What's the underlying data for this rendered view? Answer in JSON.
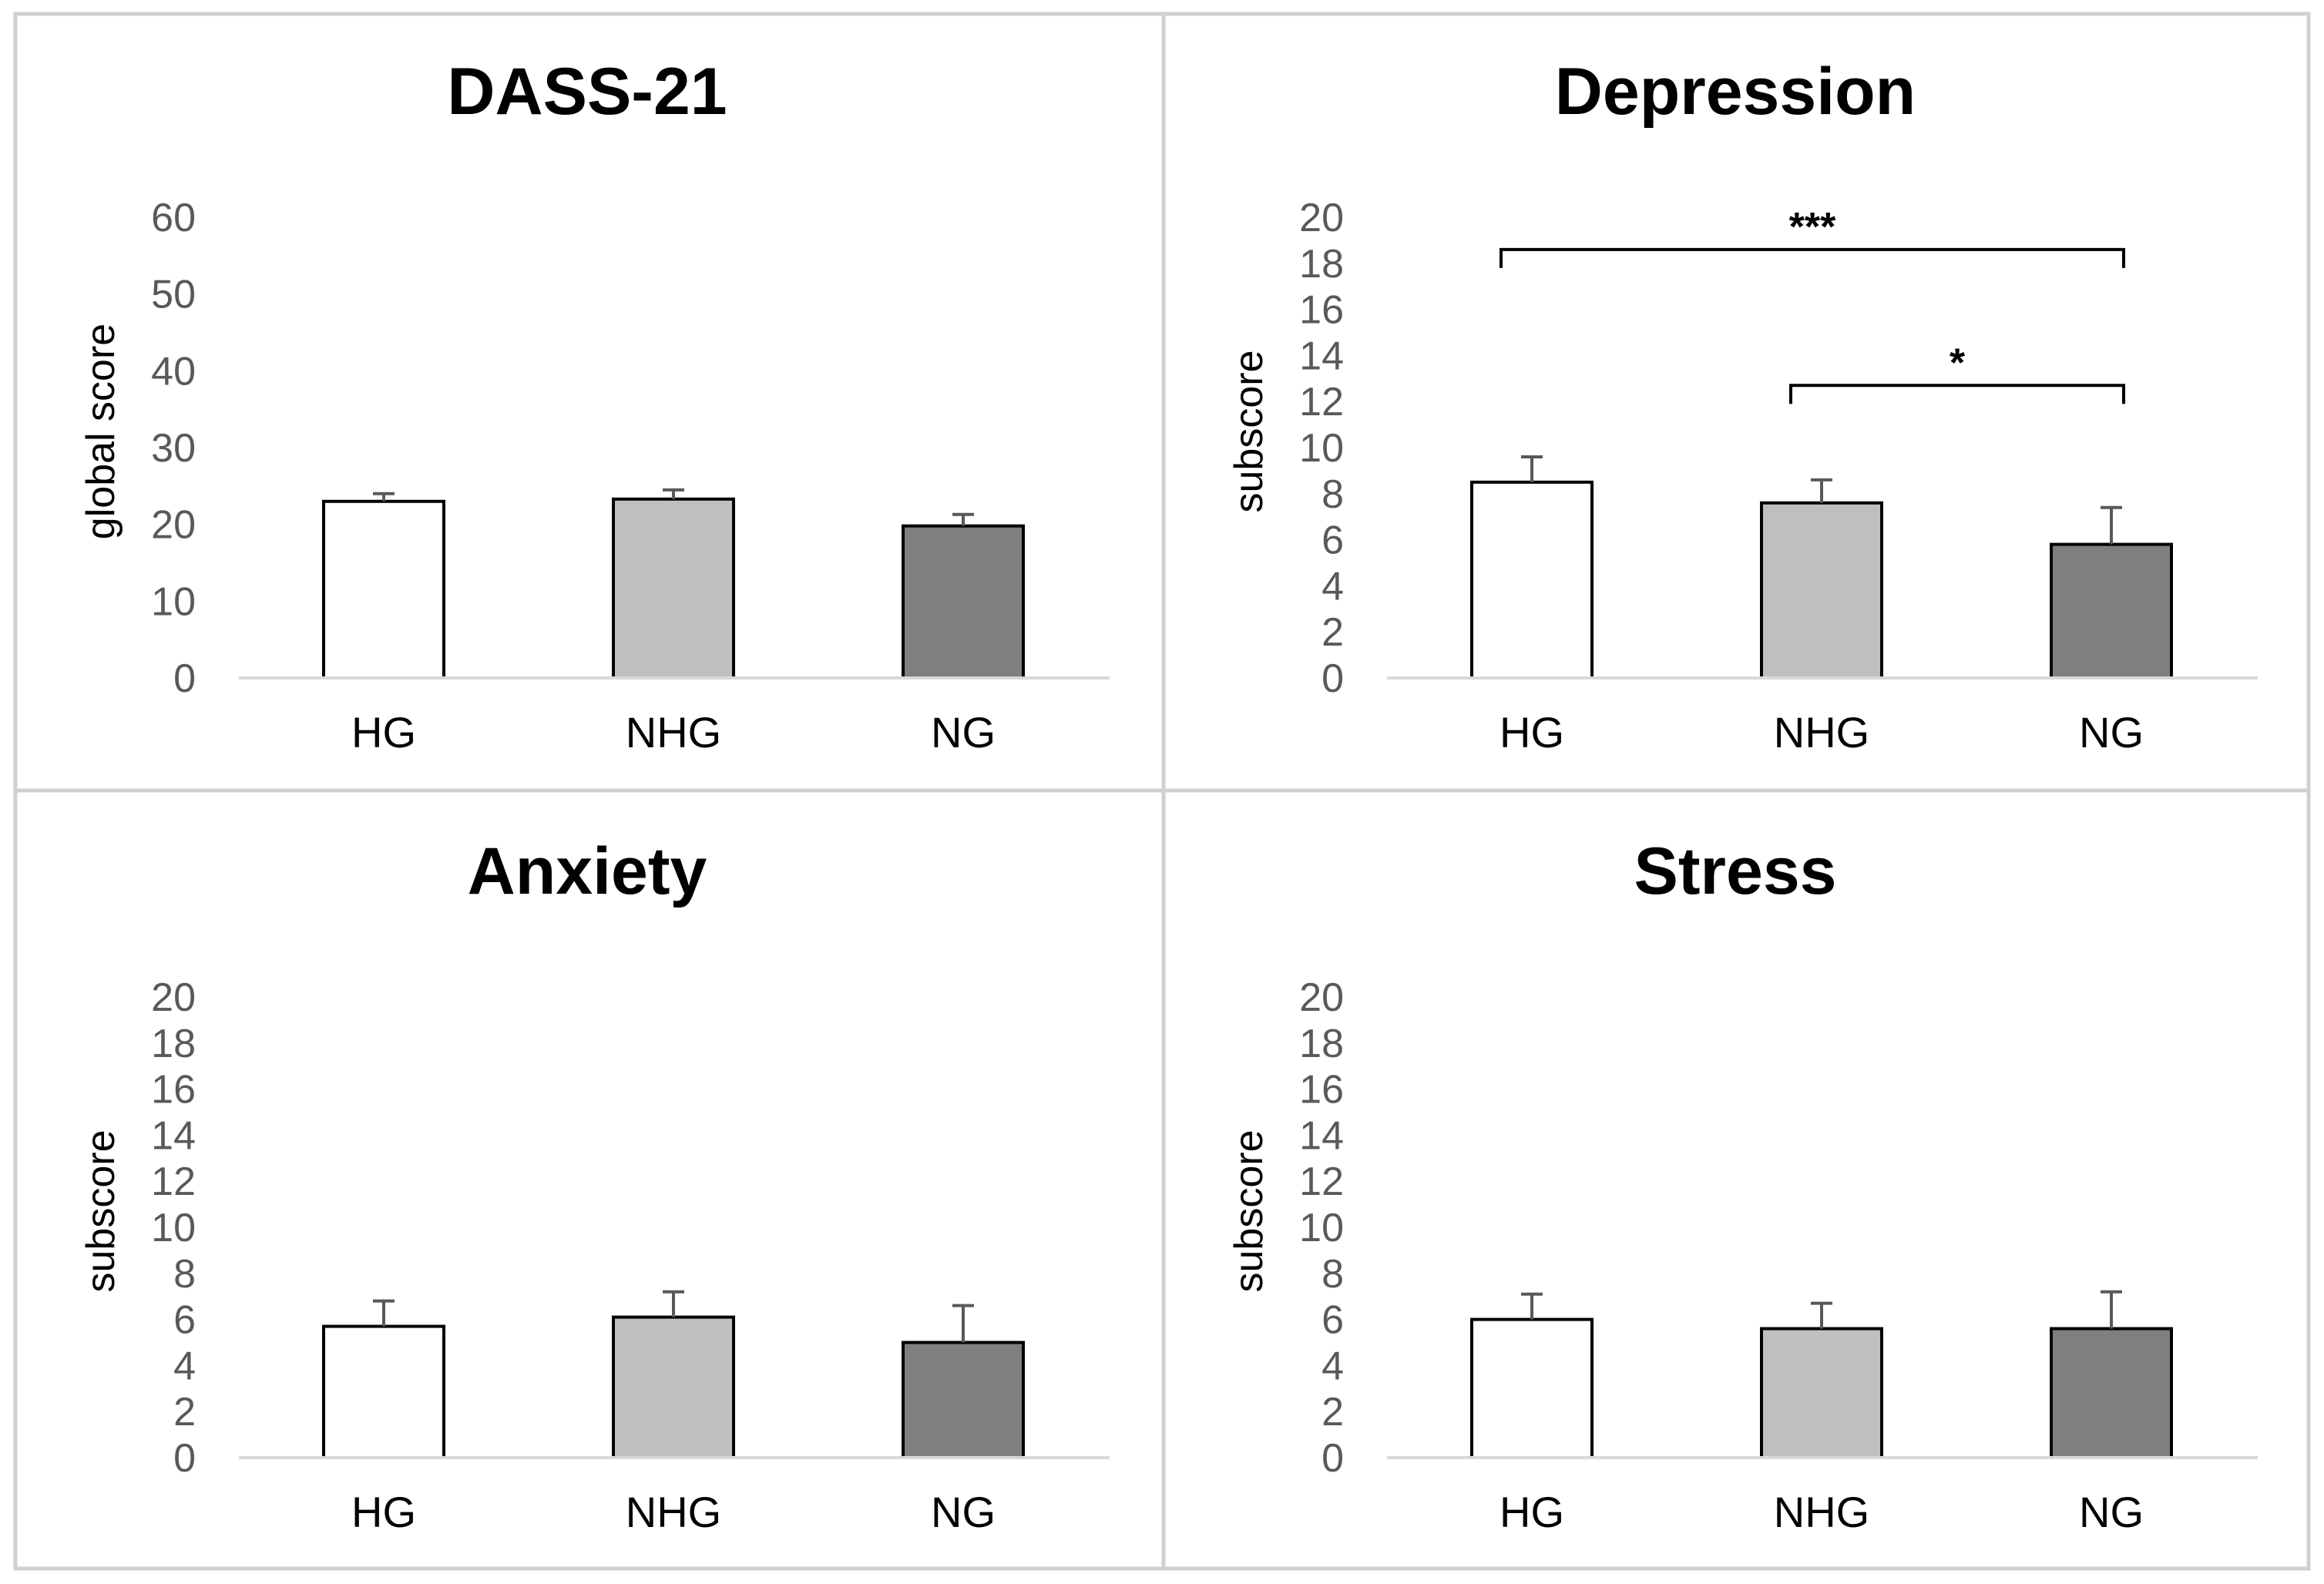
{
  "chart_data": [
    {
      "type": "bar",
      "title": "DASS-21",
      "ylabel": "global score",
      "xlabel": "",
      "categories": [
        "HG",
        "NHG",
        "NG"
      ],
      "values": [
        23,
        23.3,
        19.8
      ],
      "errors": [
        1.0,
        1.2,
        1.5
      ],
      "bar_colors": [
        "#ffffff",
        "#bfbfbf",
        "#7f7f7f"
      ],
      "ylim": [
        0,
        60
      ],
      "yticks": [
        "0",
        "10",
        "20",
        "30",
        "40",
        "50",
        "60"
      ],
      "ytick_values": [
        0,
        10,
        20,
        30,
        40,
        50,
        60
      ],
      "significance": []
    },
    {
      "type": "bar",
      "title": "Depression",
      "ylabel": "subscore",
      "xlabel": "",
      "categories": [
        "HG",
        "NHG",
        "NG"
      ],
      "values": [
        8.5,
        7.6,
        5.8
      ],
      "errors": [
        1.1,
        1.0,
        1.6
      ],
      "bar_colors": [
        "#ffffff",
        "#bfbfbf",
        "#7f7f7f"
      ],
      "ylim": [
        0,
        20
      ],
      "yticks": [
        "0",
        "2",
        "4",
        "6",
        "8",
        "10",
        "12",
        "14",
        "16",
        "18",
        "20"
      ],
      "ytick_values": [
        0,
        2,
        4,
        6,
        8,
        10,
        12,
        14,
        16,
        18,
        20
      ],
      "significance": [
        {
          "from": 0,
          "to": 2,
          "level": 18.6,
          "label": "***"
        },
        {
          "from": 1,
          "to": 2,
          "level": 12.7,
          "label": "*"
        }
      ]
    },
    {
      "type": "bar",
      "title": "Anxiety",
      "ylabel": "subscore",
      "xlabel": "",
      "categories": [
        "HG",
        "NHG",
        "NG"
      ],
      "values": [
        5.7,
        6.1,
        5.0
      ],
      "errors": [
        1.1,
        1.1,
        1.6
      ],
      "bar_colors": [
        "#ffffff",
        "#bfbfbf",
        "#7f7f7f"
      ],
      "ylim": [
        0,
        20
      ],
      "yticks": [
        "0",
        "2",
        "4",
        "6",
        "8",
        "10",
        "12",
        "14",
        "16",
        "18",
        "20"
      ],
      "ytick_values": [
        0,
        2,
        4,
        6,
        8,
        10,
        12,
        14,
        16,
        18,
        20
      ],
      "significance": []
    },
    {
      "type": "bar",
      "title": "Stress",
      "ylabel": "subscore",
      "xlabel": "",
      "categories": [
        "HG",
        "NHG",
        "NG"
      ],
      "values": [
        6.0,
        5.6,
        5.6
      ],
      "errors": [
        1.1,
        1.1,
        1.6
      ],
      "bar_colors": [
        "#ffffff",
        "#bfbfbf",
        "#7f7f7f"
      ],
      "ylim": [
        0,
        20
      ],
      "yticks": [
        "0",
        "2",
        "4",
        "6",
        "8",
        "10",
        "12",
        "14",
        "16",
        "18",
        "20"
      ],
      "ytick_values": [
        0,
        2,
        4,
        6,
        8,
        10,
        12,
        14,
        16,
        18,
        20
      ],
      "significance": []
    }
  ]
}
